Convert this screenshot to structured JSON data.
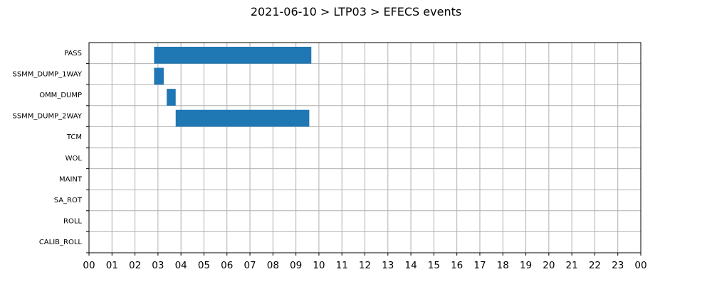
{
  "chart_data": {
    "type": "bar",
    "orientation": "horizontal-timeline",
    "title": "2021-06-10 > LTP03 > EFECS events",
    "xlabel": "",
    "ylabel": "",
    "xlim": [
      0,
      24
    ],
    "x_tick_labels": [
      "00",
      "01",
      "02",
      "03",
      "04",
      "05",
      "06",
      "07",
      "08",
      "09",
      "10",
      "11",
      "12",
      "13",
      "14",
      "15",
      "16",
      "17",
      "18",
      "19",
      "20",
      "21",
      "22",
      "23",
      "00"
    ],
    "categories": [
      "PASS",
      "SSMM_DUMP_1WAY",
      "OMM_DUMP",
      "SSMM_DUMP_2WAY",
      "TCM",
      "WOL",
      "MAINT",
      "SA_ROT",
      "ROLL",
      "CALIB_ROLL"
    ],
    "grid": true,
    "bar_color": "#1f77b4",
    "events": [
      {
        "category": "PASS",
        "start": 2.83,
        "end": 9.67
      },
      {
        "category": "SSMM_DUMP_1WAY",
        "start": 2.83,
        "end": 3.25
      },
      {
        "category": "OMM_DUMP",
        "start": 3.38,
        "end": 3.77
      },
      {
        "category": "SSMM_DUMP_2WAY",
        "start": 3.77,
        "end": 9.58
      }
    ]
  }
}
